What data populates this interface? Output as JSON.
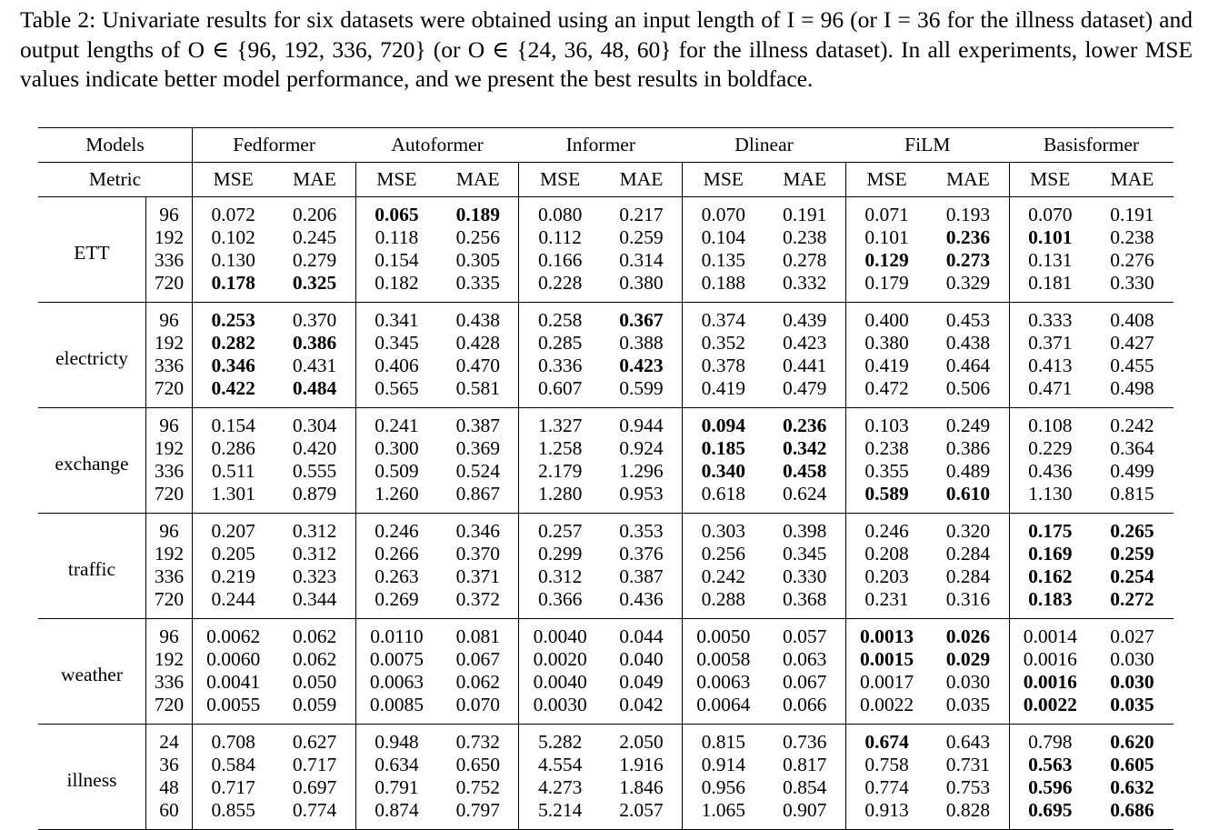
{
  "caption": "Table 2: Univariate results for six datasets were obtained using an input length of I = 96 (or I = 36 for the illness dataset) and output lengths of O ∈ {96, 192, 336, 720} (or O ∈ {24, 36, 48, 60} for the illness dataset). In all experiments, lower MSE values indicate better model performance, and we present the best results in boldface.",
  "header": {
    "models_label": "Models",
    "metric_label": "Metric",
    "models": [
      "Fedformer",
      "Autoformer",
      "Informer",
      "Dlinear",
      "FiLM",
      "Basisformer"
    ],
    "metrics": [
      "MSE",
      "MAE"
    ]
  },
  "datasets": [
    {
      "name": "ETT",
      "rows": [
        {
          "h": "96",
          "v": [
            "0.072",
            "0.206",
            "0.065",
            "0.189",
            "0.080",
            "0.217",
            "0.070",
            "0.191",
            "0.071",
            "0.193",
            "0.070",
            "0.191"
          ],
          "bold": [
            2,
            3
          ]
        },
        {
          "h": "192",
          "v": [
            "0.102",
            "0.245",
            "0.118",
            "0.256",
            "0.112",
            "0.259",
            "0.104",
            "0.238",
            "0.101",
            "0.236",
            "0.101",
            "0.238"
          ],
          "bold": [
            9,
            10
          ]
        },
        {
          "h": "336",
          "v": [
            "0.130",
            "0.279",
            "0.154",
            "0.305",
            "0.166",
            "0.314",
            "0.135",
            "0.278",
            "0.129",
            "0.273",
            "0.131",
            "0.276"
          ],
          "bold": [
            8,
            9
          ]
        },
        {
          "h": "720",
          "v": [
            "0.178",
            "0.325",
            "0.182",
            "0.335",
            "0.228",
            "0.380",
            "0.188",
            "0.332",
            "0.179",
            "0.329",
            "0.181",
            "0.330"
          ],
          "bold": [
            0,
            1
          ]
        }
      ]
    },
    {
      "name": "electricty",
      "rows": [
        {
          "h": "96",
          "v": [
            "0.253",
            "0.370",
            "0.341",
            "0.438",
            "0.258",
            "0.367",
            "0.374",
            "0.439",
            "0.400",
            "0.453",
            "0.333",
            "0.408"
          ],
          "bold": [
            0,
            5
          ]
        },
        {
          "h": "192",
          "v": [
            "0.282",
            "0.386",
            "0.345",
            "0.428",
            "0.285",
            "0.388",
            "0.352",
            "0.423",
            "0.380",
            "0.438",
            "0.371",
            "0.427"
          ],
          "bold": [
            0,
            1
          ]
        },
        {
          "h": "336",
          "v": [
            "0.346",
            "0.431",
            "0.406",
            "0.470",
            "0.336",
            "0.423",
            "0.378",
            "0.441",
            "0.419",
            "0.464",
            "0.413",
            "0.455"
          ],
          "bold": [
            0,
            5
          ]
        },
        {
          "h": "720",
          "v": [
            "0.422",
            "0.484",
            "0.565",
            "0.581",
            "0.607",
            "0.599",
            "0.419",
            "0.479",
            "0.472",
            "0.506",
            "0.471",
            "0.498"
          ],
          "bold": [
            0,
            1
          ]
        }
      ]
    },
    {
      "name": "exchange",
      "rows": [
        {
          "h": "96",
          "v": [
            "0.154",
            "0.304",
            "0.241",
            "0.387",
            "1.327",
            "0.944",
            "0.094",
            "0.236",
            "0.103",
            "0.249",
            "0.108",
            "0.242"
          ],
          "bold": [
            6,
            7
          ]
        },
        {
          "h": "192",
          "v": [
            "0.286",
            "0.420",
            "0.300",
            "0.369",
            "1.258",
            "0.924",
            "0.185",
            "0.342",
            "0.238",
            "0.386",
            "0.229",
            "0.364"
          ],
          "bold": [
            6,
            7
          ]
        },
        {
          "h": "336",
          "v": [
            "0.511",
            "0.555",
            "0.509",
            "0.524",
            "2.179",
            "1.296",
            "0.340",
            "0.458",
            "0.355",
            "0.489",
            "0.436",
            "0.499"
          ],
          "bold": [
            6,
            7
          ]
        },
        {
          "h": "720",
          "v": [
            "1.301",
            "0.879",
            "1.260",
            "0.867",
            "1.280",
            "0.953",
            "0.618",
            "0.624",
            "0.589",
            "0.610",
            "1.130",
            "0.815"
          ],
          "bold": [
            8,
            9
          ]
        }
      ]
    },
    {
      "name": "traffic",
      "rows": [
        {
          "h": "96",
          "v": [
            "0.207",
            "0.312",
            "0.246",
            "0.346",
            "0.257",
            "0.353",
            "0.303",
            "0.398",
            "0.246",
            "0.320",
            "0.175",
            "0.265"
          ],
          "bold": [
            10,
            11
          ]
        },
        {
          "h": "192",
          "v": [
            "0.205",
            "0.312",
            "0.266",
            "0.370",
            "0.299",
            "0.376",
            "0.256",
            "0.345",
            "0.208",
            "0.284",
            "0.169",
            "0.259"
          ],
          "bold": [
            10,
            11
          ]
        },
        {
          "h": "336",
          "v": [
            "0.219",
            "0.323",
            "0.263",
            "0.371",
            "0.312",
            "0.387",
            "0.242",
            "0.330",
            "0.203",
            "0.284",
            "0.162",
            "0.254"
          ],
          "bold": [
            10,
            11
          ]
        },
        {
          "h": "720",
          "v": [
            "0.244",
            "0.344",
            "0.269",
            "0.372",
            "0.366",
            "0.436",
            "0.288",
            "0.368",
            "0.231",
            "0.316",
            "0.183",
            "0.272"
          ],
          "bold": [
            10,
            11
          ]
        }
      ]
    },
    {
      "name": "weather",
      "rows": [
        {
          "h": "96",
          "v": [
            "0.0062",
            "0.062",
            "0.0110",
            "0.081",
            "0.0040",
            "0.044",
            "0.0050",
            "0.057",
            "0.0013",
            "0.026",
            "0.0014",
            "0.027"
          ],
          "bold": [
            8,
            9
          ]
        },
        {
          "h": "192",
          "v": [
            "0.0060",
            "0.062",
            "0.0075",
            "0.067",
            "0.0020",
            "0.040",
            "0.0058",
            "0.063",
            "0.0015",
            "0.029",
            "0.0016",
            "0.030"
          ],
          "bold": [
            8,
            9
          ]
        },
        {
          "h": "336",
          "v": [
            "0.0041",
            "0.050",
            "0.0063",
            "0.062",
            "0.0040",
            "0.049",
            "0.0063",
            "0.067",
            "0.0017",
            "0.030",
            "0.0016",
            "0.030"
          ],
          "bold": [
            10,
            11
          ]
        },
        {
          "h": "720",
          "v": [
            "0.0055",
            "0.059",
            "0.0085",
            "0.070",
            "0.0030",
            "0.042",
            "0.0064",
            "0.066",
            "0.0022",
            "0.035",
            "0.0022",
            "0.035"
          ],
          "bold": [
            10,
            11
          ]
        }
      ]
    },
    {
      "name": "illness",
      "rows": [
        {
          "h": "24",
          "v": [
            "0.708",
            "0.627",
            "0.948",
            "0.732",
            "5.282",
            "2.050",
            "0.815",
            "0.736",
            "0.674",
            "0.643",
            "0.798",
            "0.620"
          ],
          "bold": [
            8,
            11
          ]
        },
        {
          "h": "36",
          "v": [
            "0.584",
            "0.717",
            "0.634",
            "0.650",
            "4.554",
            "1.916",
            "0.914",
            "0.817",
            "0.758",
            "0.731",
            "0.563",
            "0.605"
          ],
          "bold": [
            10,
            11
          ]
        },
        {
          "h": "48",
          "v": [
            "0.717",
            "0.697",
            "0.791",
            "0.752",
            "4.273",
            "1.846",
            "0.956",
            "0.854",
            "0.774",
            "0.753",
            "0.596",
            "0.632"
          ],
          "bold": [
            10,
            11
          ]
        },
        {
          "h": "60",
          "v": [
            "0.855",
            "0.774",
            "0.874",
            "0.797",
            "5.214",
            "2.057",
            "1.065",
            "0.907",
            "0.913",
            "0.828",
            "0.695",
            "0.686"
          ],
          "bold": [
            10,
            11
          ]
        }
      ]
    }
  ]
}
